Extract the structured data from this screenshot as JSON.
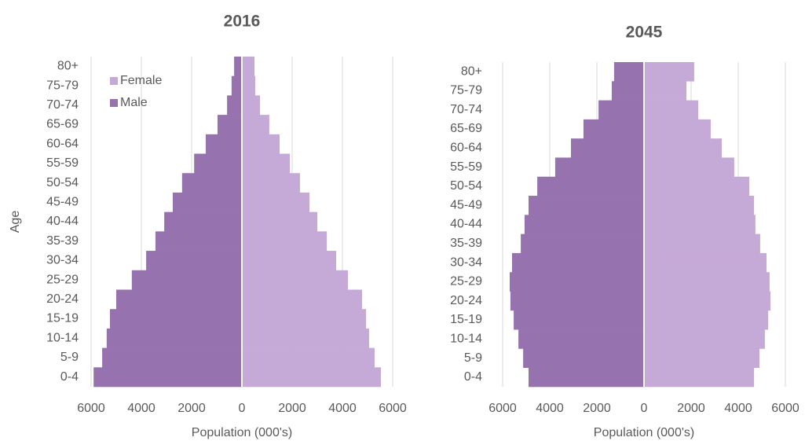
{
  "chart_data": [
    {
      "type": "pyramid",
      "title": "2016",
      "x_label": "Population (000's)",
      "y_label": "Age",
      "categories": [
        "0-4",
        "5-9",
        "10-14",
        "15-19",
        "20-24",
        "25-29",
        "30-34",
        "35-39",
        "40-44",
        "45-49",
        "50-54",
        "55-59",
        "60-64",
        "65-69",
        "70-74",
        "75-79",
        "80+"
      ],
      "series": [
        {
          "name": "Female",
          "color": "#c5a9d6",
          "values": [
            5530,
            5280,
            5060,
            4940,
            4780,
            4220,
            3750,
            3380,
            3000,
            2690,
            2310,
            1910,
            1500,
            1090,
            720,
            530,
            500
          ]
        },
        {
          "name": "Male",
          "color": "#9672ae",
          "values": [
            -5900,
            -5560,
            -5380,
            -5250,
            -5000,
            -4380,
            -3810,
            -3440,
            -3090,
            -2750,
            -2380,
            -1900,
            -1440,
            -970,
            -590,
            -410,
            -310
          ]
        }
      ],
      "xlim": [
        -6000,
        6000
      ],
      "xticks": [
        {
          "value": -6000,
          "label": "6000"
        },
        {
          "value": -4000,
          "label": "4000"
        },
        {
          "value": -2000,
          "label": "2000"
        },
        0,
        2000,
        4000,
        6000
      ],
      "grid": true,
      "legend": "top-left"
    },
    {
      "type": "pyramid",
      "title": "2045",
      "x_label": "Population (000's)",
      "categories": [
        "0-4",
        "5-9",
        "10-14",
        "15-19",
        "20-24",
        "25-29",
        "30-34",
        "35-39",
        "40-44",
        "45-49",
        "50-54",
        "55-59",
        "60-64",
        "65-69",
        "70-74",
        "75-79",
        "80+"
      ],
      "series": [
        {
          "name": "Female",
          "color": "#c5a9d6",
          "values": [
            4670,
            4900,
            5130,
            5270,
            5370,
            5330,
            5200,
            4930,
            4730,
            4670,
            4470,
            3830,
            3300,
            2830,
            2300,
            1800,
            2130
          ]
        },
        {
          "name": "Male",
          "color": "#9672ae",
          "values": [
            -4900,
            -5130,
            -5330,
            -5530,
            -5670,
            -5700,
            -5600,
            -5230,
            -5070,
            -4900,
            -4530,
            -3770,
            -3100,
            -2570,
            -1930,
            -1370,
            -1270
          ]
        }
      ],
      "xlim": [
        -6000,
        6000
      ],
      "xticks": [
        {
          "value": -6000,
          "label": "6000"
        },
        {
          "value": -4000,
          "label": "4000"
        },
        {
          "value": -2000,
          "label": "2000"
        },
        0,
        2000,
        4000,
        6000
      ],
      "grid": true
    }
  ]
}
